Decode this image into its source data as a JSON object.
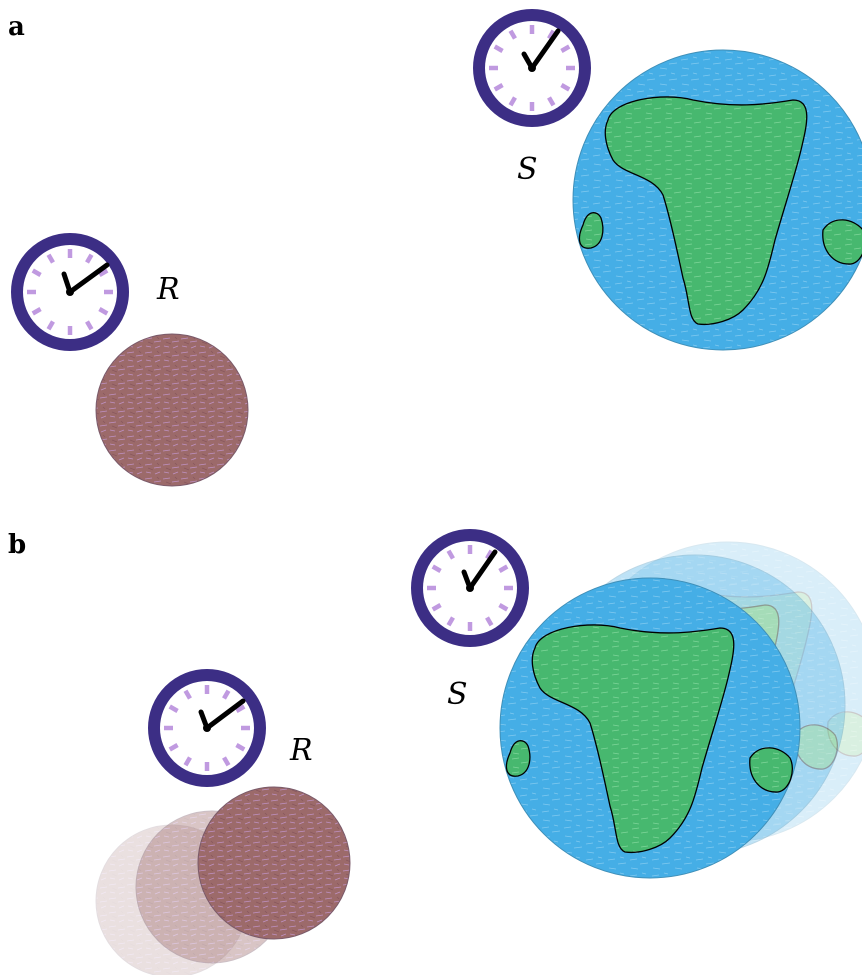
{
  "panels": {
    "a": {
      "label": "a",
      "observer_label": "R",
      "source_label": "S"
    },
    "b": {
      "label": "b",
      "observer_label": "R",
      "source_label": "S"
    }
  },
  "colors": {
    "clock_ring": "#3c2e85",
    "clock_ticks": "#c09ae0",
    "clock_hands": "#000000",
    "earth_ocean": "#45aee6",
    "earth_land": "#47b86f",
    "planet_r": "#9c6a6a"
  },
  "icons": [
    "clock-icon",
    "planet-icon",
    "earth-icon"
  ]
}
